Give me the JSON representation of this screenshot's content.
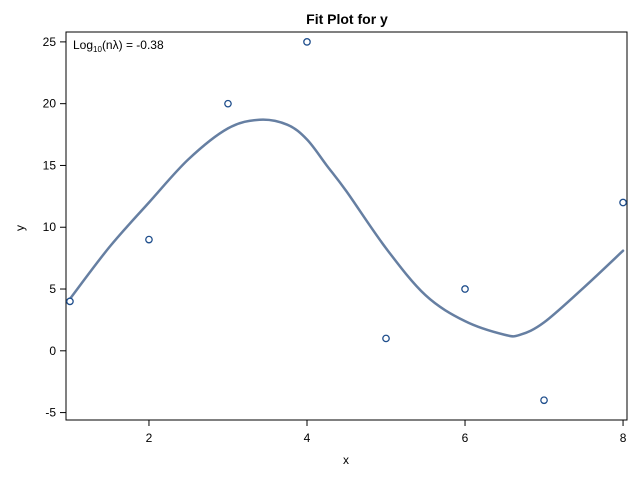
{
  "chart_data": {
    "type": "scatter",
    "title": "Fit Plot for y",
    "xlabel": "x",
    "ylabel": "y",
    "xlim": [
      0.95,
      8.05
    ],
    "ylim": [
      -5.6,
      25.8
    ],
    "xticks": [
      2,
      4,
      6,
      8
    ],
    "yticks": [
      -5,
      0,
      5,
      10,
      15,
      20,
      25
    ],
    "grid": false,
    "inset_label": {
      "prefix": "Log",
      "subscript": "10",
      "suffix": "(nλ) = -0.38"
    },
    "series": [
      {
        "kind": "points",
        "x": [
          1,
          2,
          3,
          4,
          5,
          6,
          7,
          8
        ],
        "y": [
          4,
          9,
          20,
          25,
          1,
          5,
          -4,
          12
        ]
      },
      {
        "kind": "fit-curve",
        "x": [
          1.0,
          1.5,
          2.0,
          2.5,
          3.0,
          3.4,
          3.75,
          4.0,
          4.25,
          4.5,
          5.0,
          5.5,
          6.0,
          6.5,
          6.7,
          7.0,
          7.5,
          8.0
        ],
        "y": [
          4.2,
          8.4,
          12.0,
          15.5,
          18.0,
          18.7,
          18.3,
          17.1,
          15.0,
          12.9,
          8.3,
          4.5,
          2.4,
          1.3,
          1.3,
          2.3,
          5.1,
          8.1
        ]
      }
    ]
  },
  "colors": {
    "curve": "#667fa2",
    "marker_stroke": "#1f4e8c",
    "frame": "#000000"
  }
}
